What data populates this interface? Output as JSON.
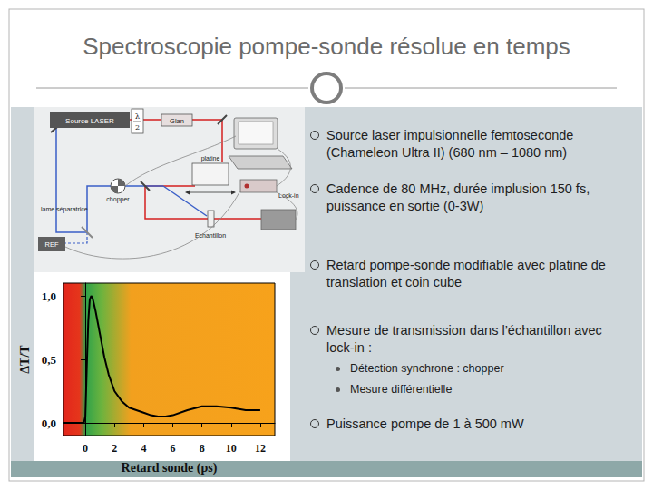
{
  "title": "Spectroscopie pompe-sonde résolue en temps",
  "diagram": {
    "labels": {
      "laser": "Source LASER",
      "lambda": "λ",
      "lambda_den": "2",
      "glan": "Glan",
      "platine": "platine",
      "chopper": "chopper",
      "lame": "lame séparatrice",
      "lockin": "Lock-in",
      "echantillon": "Echantillon",
      "ref": "REF"
    }
  },
  "bullets": [
    {
      "text": "Source laser impulsionnelle femtoseconde (Chameleon Ultra II) (680 nm – 1080 nm)",
      "sub": []
    },
    {
      "text": "Cadence de 80 MHz, durée implusion 150 fs, puissance en sortie (0-3W)",
      "sub": []
    },
    {
      "text": "Retard pompe-sonde modifiable avec platine de translation et coin cube",
      "sub": []
    },
    {
      "text": "Mesure de transmission dans l’échantillon avec lock-in :",
      "sub": [
        "Détection synchrone : chopper",
        "Mesure différentielle"
      ]
    },
    {
      "text": "Puissance pompe de 1 à 500 mW",
      "sub": []
    }
  ],
  "chart_data": {
    "type": "line",
    "xlabel": "Retard sonde (ps)",
    "ylabel": "ΔT/T",
    "x": [
      -1.5,
      -1,
      -0.5,
      -0.1,
      0,
      0.1,
      0.2,
      0.3,
      0.4,
      0.5,
      0.7,
      1,
      1.3,
      1.6,
      2,
      2.5,
      3,
      3.5,
      4,
      4.5,
      5,
      5.5,
      6,
      7,
      8,
      9,
      10,
      11,
      12
    ],
    "values": [
      0,
      0,
      0,
      0,
      0.05,
      0.45,
      0.8,
      0.97,
      1.0,
      0.98,
      0.88,
      0.7,
      0.52,
      0.38,
      0.25,
      0.17,
      0.12,
      0.1,
      0.08,
      0.06,
      0.05,
      0.05,
      0.06,
      0.1,
      0.13,
      0.13,
      0.12,
      0.1,
      0.1
    ],
    "color": "#000000",
    "xlim": [
      -1.5,
      13
    ],
    "ylim": [
      -0.1,
      1.1
    ],
    "xticks": [
      0,
      2,
      4,
      6,
      8,
      10,
      12
    ],
    "yticks": [
      {
        "value": 0,
        "label": "0,0"
      },
      {
        "value": 0.5,
        "label": "0,5"
      },
      {
        "value": 1,
        "label": "1,0"
      }
    ],
    "grid": false
  }
}
